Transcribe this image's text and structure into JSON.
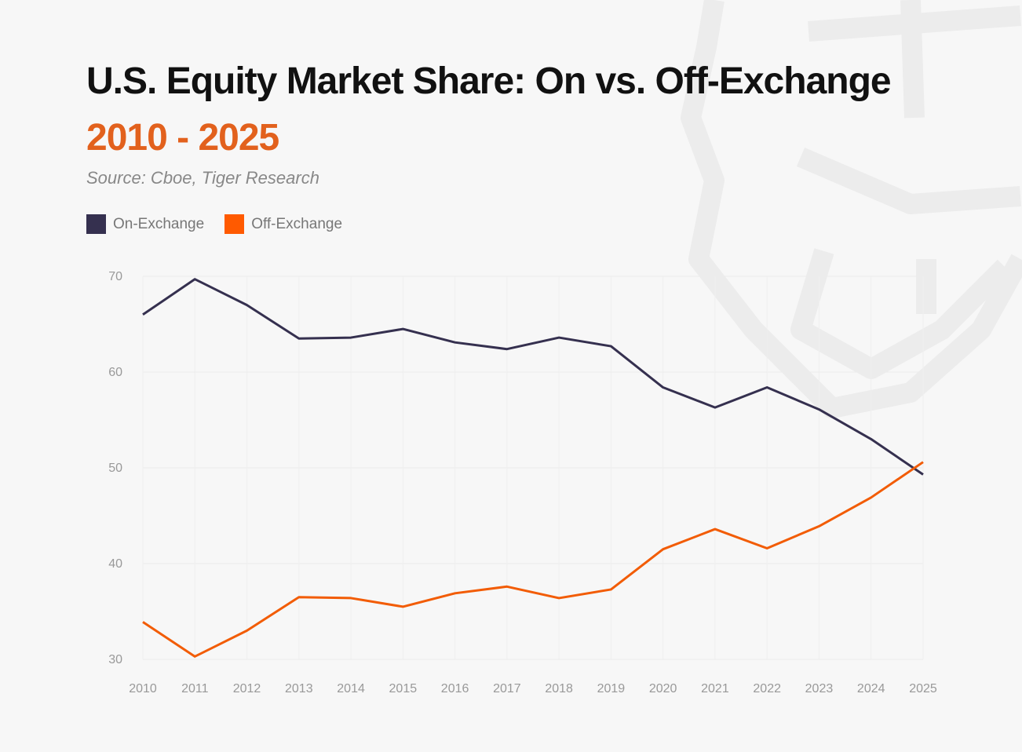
{
  "chart_data": {
    "type": "line",
    "title": "U.S. Equity Market Share: On vs. Off-Exchange",
    "subtitle": "2010 - 2025",
    "source": "Source: Cboe, Tiger Research",
    "xlabel": "",
    "ylabel": "",
    "x": [
      "2010",
      "2011",
      "2012",
      "2013",
      "2014",
      "2015",
      "2016",
      "2017",
      "2018",
      "2019",
      "2020",
      "2021",
      "2022",
      "2023",
      "2024",
      "2025"
    ],
    "ylim": [
      30,
      70
    ],
    "yticks": [
      70,
      60,
      50,
      40,
      30
    ],
    "grid": true,
    "legend_position": "top-left",
    "series": [
      {
        "name": "On-Exchange",
        "color": "#35304f",
        "values": [
          66.0,
          69.7,
          67.0,
          63.5,
          63.6,
          64.5,
          63.1,
          62.4,
          63.6,
          62.7,
          58.4,
          56.3,
          58.4,
          56.1,
          53.0,
          49.3
        ]
      },
      {
        "name": "Off-Exchange",
        "color": "#f25c05",
        "values": [
          33.9,
          30.3,
          33.0,
          36.5,
          36.4,
          35.5,
          36.9,
          37.6,
          36.4,
          37.3,
          41.5,
          43.6,
          41.6,
          43.9,
          46.9,
          50.6
        ]
      }
    ]
  }
}
